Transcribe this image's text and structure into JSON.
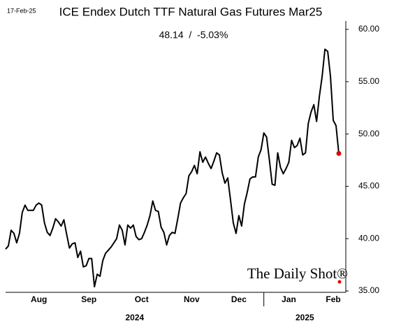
{
  "chart_data": {
    "type": "line",
    "date": "17-Feb-25",
    "title": "ICE Endex Dutch TTF Natural Gas Futures Mar25",
    "subtitle": "48.14  /  -5.03%",
    "watermark": "The Daily Shot®",
    "color": "#000000",
    "last_point_color": "#e00000",
    "categories": [
      null,
      null,
      null,
      null,
      null,
      null,
      null,
      null,
      null,
      null,
      null,
      null,
      "Aug",
      null,
      null,
      null,
      null,
      null,
      null,
      null,
      null,
      null,
      null,
      null,
      null,
      null,
      null,
      null,
      null,
      null,
      "Sep",
      null,
      null,
      null,
      null,
      null,
      null,
      null,
      null,
      null,
      null,
      null,
      null,
      null,
      null,
      null,
      null,
      null,
      null,
      "Oct",
      null,
      null,
      null,
      null,
      null,
      null,
      null,
      null,
      null,
      null,
      null,
      null,
      null,
      null,
      null,
      null,
      null,
      "Nov",
      null,
      null,
      null,
      null,
      null,
      null,
      null,
      null,
      null,
      null,
      null,
      null,
      null,
      null,
      null,
      null,
      "Dec",
      null,
      null,
      null,
      null,
      null,
      null,
      null,
      null,
      null,
      null,
      null,
      null,
      null,
      null,
      null,
      null,
      null,
      "Jan",
      null,
      null,
      null,
      null,
      null,
      null,
      null,
      null,
      null,
      null,
      null,
      null,
      null,
      null,
      null,
      "Feb",
      null,
      null
    ],
    "year_labels": [
      "2024",
      "2025"
    ],
    "values": [
      39.0,
      39.3,
      40.8,
      40.5,
      39.6,
      40.5,
      42.5,
      43.2,
      42.7,
      42.7,
      42.7,
      43.2,
      43.4,
      43.2,
      41.5,
      40.6,
      40.3,
      41.0,
      41.9,
      41.6,
      41.2,
      41.8,
      40.4,
      39.1,
      39.5,
      39.6,
      38.2,
      38.8,
      37.3,
      37.4,
      38.1,
      38.1,
      35.4,
      36.6,
      36.4,
      37.9,
      38.6,
      38.9,
      39.2,
      39.6,
      40.0,
      41.3,
      40.8,
      39.4,
      41.3,
      41.0,
      41.3,
      40.2,
      39.9,
      40.0,
      40.6,
      41.3,
      42.2,
      43.6,
      42.7,
      42.6,
      41.1,
      40.6,
      39.4,
      40.3,
      40.6,
      40.5,
      41.9,
      43.4,
      43.9,
      44.3,
      46.0,
      46.4,
      47.0,
      46.2,
      48.3,
      47.3,
      47.8,
      47.2,
      46.7,
      47.4,
      48.2,
      48.0,
      46.3,
      45.3,
      45.8,
      43.7,
      41.5,
      40.5,
      42.2,
      41.2,
      43.3,
      44.4,
      45.7,
      45.9,
      45.9,
      47.8,
      48.5,
      50.1,
      49.7,
      47.5,
      45.2,
      45.1,
      48.2,
      46.8,
      46.2,
      46.7,
      47.3,
      49.4,
      48.7,
      48.9,
      49.6,
      48.0,
      48.2,
      51.0,
      52.1,
      52.8,
      51.2,
      53.6,
      55.5,
      58.1,
      57.9,
      55.5,
      51.3,
      50.8,
      48.14
    ],
    "ylim": [
      35,
      60
    ],
    "yticks": [
      {
        "value": 35,
        "label": "35.00"
      },
      {
        "value": 40,
        "label": "40.00"
      },
      {
        "value": 45,
        "label": "45.00"
      },
      {
        "value": 50,
        "label": "50.00"
      },
      {
        "value": 55,
        "label": "55.00"
      },
      {
        "value": 60,
        "label": "60.00"
      }
    ],
    "grid": false
  }
}
